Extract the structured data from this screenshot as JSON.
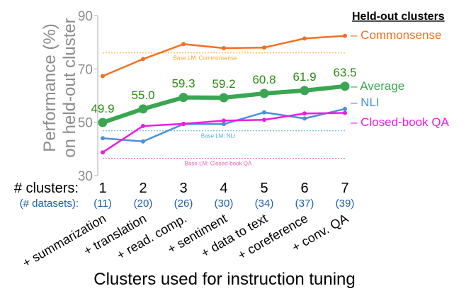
{
  "chart_data": {
    "type": "line",
    "ylabel": "Performance (%) on held-out cluster",
    "ylabel_lines": [
      "Performance (%)",
      "on held-out cluster"
    ],
    "xlabel": "Clusters used for instruction tuning",
    "ylim": [
      30,
      90
    ],
    "yticks": [
      30,
      50,
      70,
      90
    ],
    "grid": false,
    "legend_title": "Held-out clusters",
    "legend_placement": "right",
    "x": [
      1,
      2,
      3,
      4,
      5,
      6,
      7
    ],
    "clusters_label": "# clusters:",
    "datasets_label": "(# datasets):",
    "datasets": [
      "(11)",
      "(20)",
      "(26)",
      "(30)",
      "(34)",
      "(37)",
      "(39)"
    ],
    "categories": [
      "+ summarization",
      "+ translation",
      "+ read. comp.",
      "+ sentiment",
      "+ data to text",
      "+ coreference",
      "+ conv. QA"
    ],
    "series": [
      {
        "name": "Commonsense",
        "label": "– Commonsense",
        "color": "#f37021",
        "values": [
          67.3,
          73.7,
          79.3,
          77.8,
          78.0,
          81.4,
          82.4
        ]
      },
      {
        "name": "Average",
        "label": "– Average",
        "color": "#3aa652",
        "values": [
          49.9,
          55.0,
          59.3,
          59.2,
          60.8,
          61.9,
          63.5
        ],
        "data_labels": [
          "49.9",
          "55.0",
          "59.3",
          "59.2",
          "60.8",
          "61.9",
          "63.5"
        ]
      },
      {
        "name": "NLI",
        "label": "– NLI",
        "color": "#4a90d9",
        "values": [
          44.0,
          42.8,
          49.3,
          49.3,
          53.7,
          51.4,
          55.0
        ]
      },
      {
        "name": "Closed-book QA",
        "label": "– Closed-book QA",
        "color": "#ee1be3",
        "values": [
          38.7,
          48.6,
          49.4,
          50.6,
          50.9,
          53.3,
          53.5
        ]
      }
    ],
    "baselines": [
      {
        "label": "Base LM: Commonsense",
        "value": 76.0,
        "color": "#f5a623"
      },
      {
        "label": "Base LM: NLI",
        "value": 46.8,
        "color": "#4ab0d9"
      },
      {
        "label": "Base LM: Closed-book QA",
        "value": 36.5,
        "color": "#ee5fb0"
      }
    ]
  }
}
